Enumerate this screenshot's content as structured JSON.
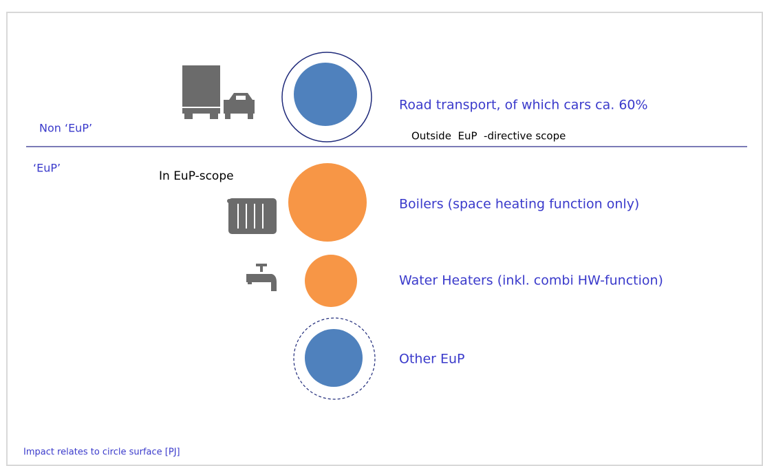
{
  "labels": {
    "non_eup": "Non ‘EuP’",
    "eup": "‘EuP’",
    "in_scope": "In EuP-scope",
    "outside_scope": "Outside  EuP  -directive scope",
    "footnote": "Impact relates to circle surface [PJ]"
  },
  "items": [
    {
      "label": "Road transport, of which cars ca. 60%"
    },
    {
      "label": "Boilers (space heating function only)"
    },
    {
      "label": "Water Heaters (inkl. combi HW-function)"
    },
    {
      "label": "Other EuP"
    }
  ]
}
